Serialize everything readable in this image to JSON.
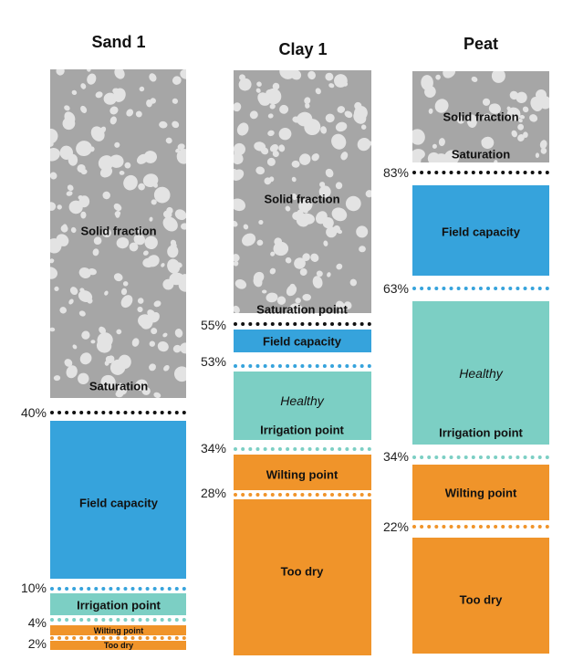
{
  "columns": [
    {
      "title": "Sand 1",
      "percents": [
        "40%",
        "10%",
        "4%",
        "2%"
      ],
      "zones": {
        "solid": "Solid fraction",
        "saturation": "Saturation",
        "field": "Field capacity",
        "irrigation": "Irrigation point",
        "wilting": "Wilting point",
        "toodry": "Too dry"
      }
    },
    {
      "title": "Clay 1",
      "percents": [
        "55%",
        "53%",
        "34%",
        "28%"
      ],
      "zones": {
        "solid": "Solid fraction",
        "saturation": "Saturation point",
        "field": "Field capacity",
        "healthy": "Healthy",
        "irrigation": "Irrigation point",
        "wilting": "Wilting point",
        "toodry": "Too dry"
      }
    },
    {
      "title": "Peat",
      "percents": [
        "83%",
        "63%",
        "34%",
        "22%"
      ],
      "zones": {
        "solid": "Solid fraction",
        "saturation": "Saturation",
        "field": "Field capacity",
        "healthy": "Healthy",
        "irrigation": "Irrigation point",
        "wilting": "Wilting point",
        "toodry": "Too dry"
      }
    }
  ],
  "colors": {
    "solid": "#a6a6a6",
    "pebble": "#e3e3e3",
    "field": "#36a3dc",
    "healthy": "#7ccfc4",
    "dry": "#f0942a",
    "saturation_line": "#111111"
  }
}
